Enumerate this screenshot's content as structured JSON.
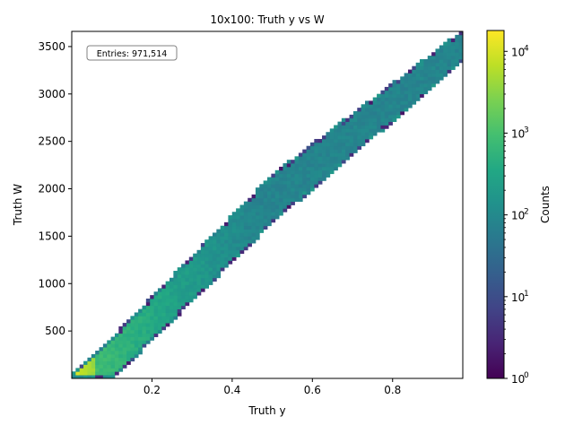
{
  "chart_data": {
    "type": "heatmap",
    "title": "10x100: Truth y vs W",
    "xlabel": "Truth y",
    "ylabel": "Truth W",
    "xlim": [
      0.0,
      0.975
    ],
    "ylim": [
      0,
      3660
    ],
    "x_ticks": [
      0.2,
      0.4,
      0.6,
      0.8
    ],
    "x_tick_labels": [
      "0.2",
      "0.4",
      "0.6",
      "0.8"
    ],
    "y_ticks": [
      500,
      1000,
      1500,
      2000,
      2500,
      3000,
      3500
    ],
    "y_tick_labels": [
      "500",
      "1000",
      "1500",
      "2000",
      "2500",
      "3000",
      "3500"
    ],
    "annotation": "Entries: 971,514",
    "annotation_position": "top-left",
    "bins": {
      "x": 100,
      "y": 100
    },
    "band": {
      "description_points": [
        {
          "x": 0.0,
          "w_low": 0,
          "w_high": 30
        },
        {
          "x": 0.1,
          "w_low": 0,
          "w_high": 420
        },
        {
          "x": 0.5,
          "w_low": 1650,
          "w_high": 2140
        },
        {
          "x": 0.975,
          "w_low": 3350,
          "w_high": 3660
        }
      ]
    },
    "colorbar": {
      "label": "Counts",
      "scale": "log",
      "range": [
        1,
        18000
      ],
      "ticks": [
        1,
        10,
        100,
        1000,
        10000
      ],
      "tick_labels": [
        "10",
        "10",
        "10",
        "10",
        "10"
      ],
      "tick_exponents": [
        "0",
        "1",
        "2",
        "3",
        "4"
      ],
      "colormap": "viridis"
    }
  }
}
